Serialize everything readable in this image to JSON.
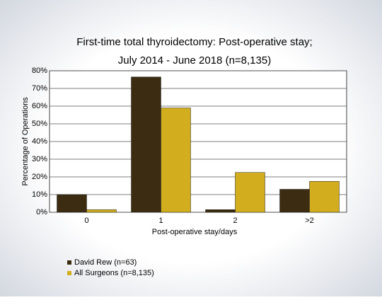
{
  "chart_data": {
    "type": "bar",
    "title": "First-time total thyroidectomy: Post-operative stay;",
    "subtitle": "July 2014 - June 2018 (n=8,135)",
    "x_label": "Post-operative stay/days",
    "y_label": "Percentage of Operations",
    "categories": [
      "0",
      "1",
      "2",
      ">2"
    ],
    "series": [
      {
        "name": "David Rew (n=63)",
        "color": "#3b2c12",
        "values": [
          10,
          76.5,
          1.5,
          13
        ]
      },
      {
        "name": "All Surgeons (n=8,135)",
        "color": "#d2ae1e",
        "values": [
          1.5,
          59,
          22.5,
          17.5
        ]
      }
    ],
    "ylim": [
      0,
      80
    ],
    "yticks": [
      {
        "value": 0,
        "label": "0%"
      },
      {
        "value": 10,
        "label": "10%"
      },
      {
        "value": 20,
        "label": "20%"
      },
      {
        "value": 30,
        "label": "30%"
      },
      {
        "value": 40,
        "label": "40%"
      },
      {
        "value": 50,
        "label": "50%"
      },
      {
        "value": 60,
        "label": "60%"
      },
      {
        "value": 70,
        "label": "70%"
      },
      {
        "value": 80,
        "label": "80%"
      }
    ],
    "grid": true
  }
}
